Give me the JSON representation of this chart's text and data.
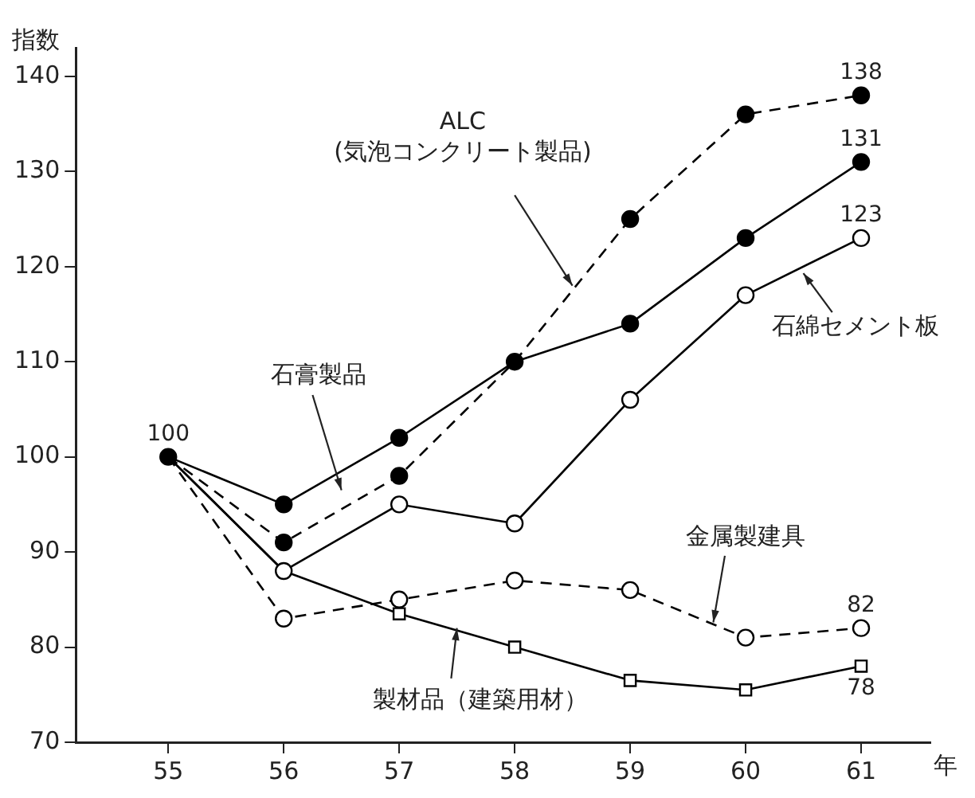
{
  "chart_data": {
    "type": "line",
    "xlabel": "年",
    "ylabel": "指数",
    "x": [
      55,
      56,
      57,
      58,
      59,
      60,
      61
    ],
    "xlim": [
      54.2,
      61.6
    ],
    "xticks": [
      55,
      56,
      57,
      58,
      59,
      60,
      61
    ],
    "ylim": [
      70,
      143
    ],
    "yticks": [
      70,
      80,
      90,
      100,
      110,
      120,
      130,
      140
    ],
    "grid": false,
    "legend": false,
    "series": [
      {
        "name": "ALC\n(気泡コンクリート製品)",
        "color": "#000000",
        "line_style": "dashed",
        "marker": "circle",
        "values": [
          100,
          91,
          98,
          110,
          125,
          136,
          138
        ],
        "value_labels": [
          "100",
          null,
          null,
          null,
          null,
          null,
          "138"
        ]
      },
      {
        "name": "石膏製品",
        "color": "#000000",
        "line_style": "solid",
        "marker": "circle",
        "values": [
          100,
          95,
          102,
          110,
          114,
          123,
          131
        ],
        "value_labels": [
          null,
          null,
          null,
          null,
          null,
          null,
          "131"
        ]
      },
      {
        "name": "石綿セメント板",
        "color": "#000000",
        "line_style": "solid",
        "marker": "circle",
        "values": [
          100,
          88,
          95,
          93,
          106,
          117,
          123
        ],
        "value_labels": [
          null,
          null,
          null,
          null,
          null,
          null,
          "123"
        ]
      },
      {
        "name": "金属製建具",
        "color": "#000000",
        "line_style": "dashed",
        "marker": "circle",
        "values": [
          100,
          83,
          85,
          87,
          86,
          81,
          82
        ],
        "value_labels": [
          null,
          null,
          null,
          null,
          null,
          null,
          "82"
        ]
      },
      {
        "name": "製材品（建築用材）",
        "color": "#000000",
        "line_style": "solid",
        "marker": "square",
        "values": [
          100,
          88,
          83.5,
          80,
          76.5,
          75.5,
          78
        ],
        "value_labels": [
          null,
          null,
          null,
          null,
          null,
          null,
          "78"
        ]
      }
    ]
  }
}
